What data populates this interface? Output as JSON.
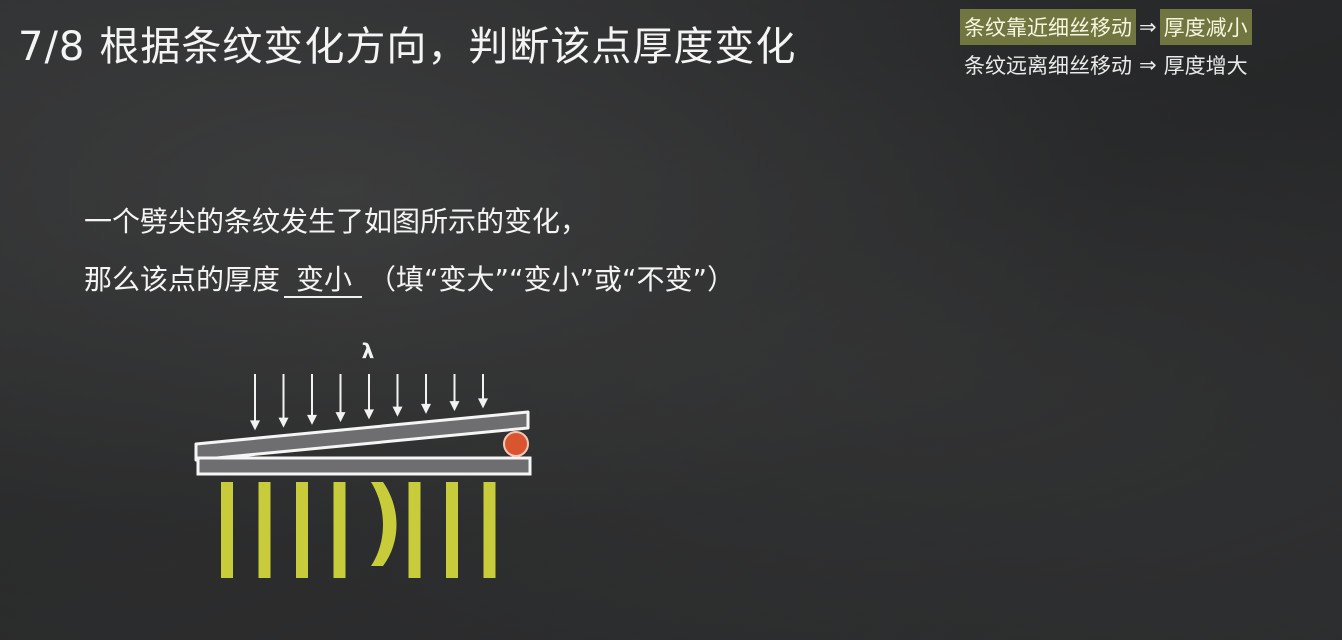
{
  "slide": {
    "number": "7/8",
    "title": "根据条纹变化方向，判断该点厚度变化"
  },
  "legend": {
    "rule1": {
      "condition": "条纹靠近细丝移动",
      "arrow": "⇒",
      "result": "厚度减小"
    },
    "rule2": {
      "condition": "条纹远离细丝移动",
      "arrow": "⇒",
      "result": "厚度增大"
    },
    "highlight_color": "#717540"
  },
  "question": {
    "line1": "一个劈尖的条纹发生了如图所示的变化，",
    "line2_prefix": "那么该点的厚度",
    "answer": "变小",
    "line2_suffix": "（填“变大”“变小”或“不变”）"
  },
  "diagram": {
    "wavelength_label": "λ",
    "incident_ray_count": 9,
    "fringe_count": 8,
    "bent_fringe_index": 4,
    "fringe_color": "#c8cc3a",
    "wire_color": "#d8552f"
  }
}
